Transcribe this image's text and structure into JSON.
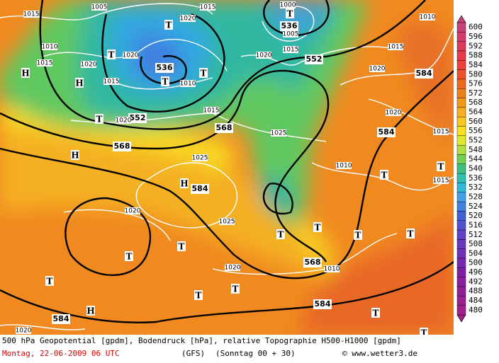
{
  "map": {
    "geopotential_labels": [
      "536",
      "552",
      "536",
      "552",
      "568",
      "568",
      "584",
      "584",
      "584",
      "568",
      "584",
      "584"
    ],
    "pressure_labels": [
      "1005",
      "1015",
      "1015",
      "1000",
      "1005",
      "1015",
      "1020",
      "1020",
      "1010",
      "1015",
      "1020",
      "1020",
      "1015",
      "1010",
      "1015",
      "1020",
      "1025",
      "1025",
      "1010",
      "1020",
      "1015",
      "1015",
      "1020",
      "1015",
      "1010",
      "1025",
      "1020",
      "1010",
      "1020",
      "1020"
    ],
    "centers": [
      "T",
      "T",
      "T",
      "T",
      "T",
      "H",
      "H",
      "H",
      "H",
      "T",
      "T",
      "T",
      "T",
      "T",
      "T",
      "T",
      "T",
      "T",
      "T",
      "H",
      "T",
      "T",
      "T",
      "T"
    ]
  },
  "colorbar": {
    "ticks": [
      600,
      596,
      592,
      588,
      584,
      580,
      576,
      572,
      568,
      564,
      560,
      556,
      552,
      548,
      544,
      540,
      536,
      532,
      528,
      524,
      520,
      516,
      512,
      508,
      504,
      500,
      496,
      492,
      488,
      484,
      480
    ],
    "colors": [
      "#c8407a",
      "#d43a6a",
      "#e0385a",
      "#e8384a",
      "#f0403a",
      "#f05028",
      "#f06820",
      "#f08018",
      "#f49818",
      "#f8b020",
      "#f8c820",
      "#f8e020",
      "#e0e830",
      "#b0e040",
      "#70d050",
      "#40c080",
      "#30c0b0",
      "#30b8d8",
      "#40a0e8",
      "#4080e0",
      "#4060d8",
      "#5050d0",
      "#6040c8",
      "#6838c0",
      "#7030b8",
      "#7828b0",
      "#8020a8",
      "#8820a0",
      "#902098",
      "#982090",
      "#a02088"
    ]
  },
  "caption": {
    "line1": "500 hPa Geopotential [gpdm], Bodendruck [hPa], relative Topographie H500-H1000 [gpdm]",
    "date": "Montag, 22-06-2009  06 UTC",
    "model": "(GFS)",
    "run": "(Sonntag 00 + 30)",
    "credit": "© www.wetter3.de"
  }
}
